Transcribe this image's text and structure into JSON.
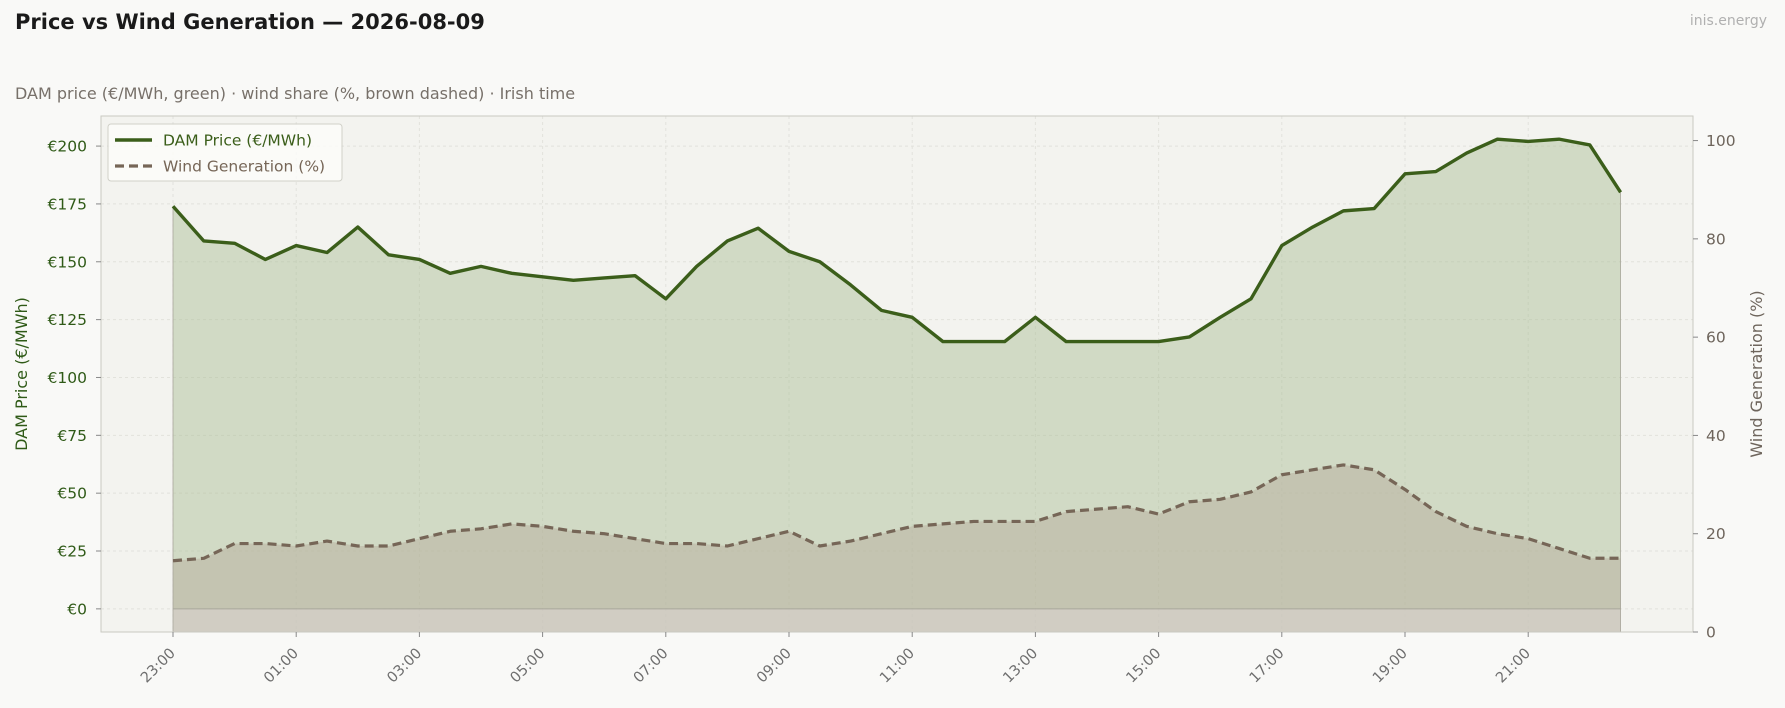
{
  "header": {
    "title": "Price vs Wind Generation — 2026-08-09",
    "brand": "inis.energy",
    "subtitle": "DAM price (€/MWh, green)  ·  wind share (%, brown dashed)  ·  Irish time"
  },
  "colors": {
    "price": "#3b5e1a",
    "price_fill": "#a9bd92",
    "wind": "#766657",
    "wind_fill": "#b9b3a1",
    "plot_bg": "#f3f3ef",
    "grid": "#e2e2dc"
  },
  "chart_data": {
    "type": "line",
    "title": "Price vs Wind Generation — 2026-08-09",
    "xlabel": "",
    "ylabel": "DAM Price (€/MWh)",
    "y2label": "Wind Generation (%)",
    "x_tick_labels": [
      "23:00",
      "01:00",
      "03:00",
      "05:00",
      "07:00",
      "09:00",
      "11:00",
      "13:00",
      "15:00",
      "17:00",
      "19:00",
      "21:00"
    ],
    "y_tick_labels": [
      "€0",
      "€25",
      "€50",
      "€75",
      "€100",
      "€125",
      "€150",
      "€175",
      "€200"
    ],
    "y2_tick_labels": [
      "0",
      "20",
      "40",
      "60",
      "80",
      "100"
    ],
    "ylim": [
      -10,
      213
    ],
    "y2lim": [
      0,
      105
    ],
    "grid": true,
    "legend_position": "top-left",
    "x": [
      "23:00",
      "23:30",
      "00:00",
      "00:30",
      "01:00",
      "01:30",
      "02:00",
      "02:30",
      "03:00",
      "03:30",
      "04:00",
      "04:30",
      "05:00",
      "05:30",
      "06:00",
      "06:30",
      "07:00",
      "07:30",
      "08:00",
      "08:30",
      "09:00",
      "09:30",
      "10:00",
      "10:30",
      "11:00",
      "11:30",
      "12:00",
      "12:30",
      "13:00",
      "13:30",
      "14:00",
      "14:30",
      "15:00",
      "15:30",
      "16:00",
      "16:30",
      "17:00",
      "17:30",
      "18:00",
      "18:30",
      "19:00",
      "19:30",
      "20:00",
      "20:30",
      "21:00",
      "21:30",
      "22:00",
      "22:30"
    ],
    "series": [
      {
        "name": "DAM Price (€/MWh)",
        "axis": "left",
        "style": "solid",
        "values": [
          174,
          159,
          158,
          151,
          157,
          154,
          165,
          153,
          151,
          145,
          148,
          145,
          143.5,
          142,
          143,
          144,
          134,
          148,
          159,
          164.5,
          154.5,
          150,
          140,
          129,
          126,
          115.5,
          115.5,
          115.5,
          126,
          115.5,
          115.5,
          115.5,
          115.5,
          117.5,
          126,
          134,
          157,
          165,
          172,
          173,
          188,
          189,
          197,
          203,
          202,
          203,
          200.5,
          180
        ]
      },
      {
        "name": "Wind Generation (%)",
        "axis": "right",
        "style": "dashed",
        "values": [
          14.5,
          15,
          18,
          18,
          17.5,
          18.5,
          17.5,
          17.5,
          19,
          20.5,
          21,
          22,
          21.5,
          20.5,
          20,
          19,
          18,
          18,
          17.5,
          19,
          20.5,
          17.5,
          18.5,
          20,
          21.5,
          22,
          22.5,
          22.5,
          22.5,
          24.5,
          25,
          25.5,
          24,
          26.5,
          27,
          28.5,
          32,
          33,
          34,
          33,
          29,
          24.5,
          21.5,
          20,
          19,
          17,
          15,
          15
        ]
      }
    ]
  }
}
